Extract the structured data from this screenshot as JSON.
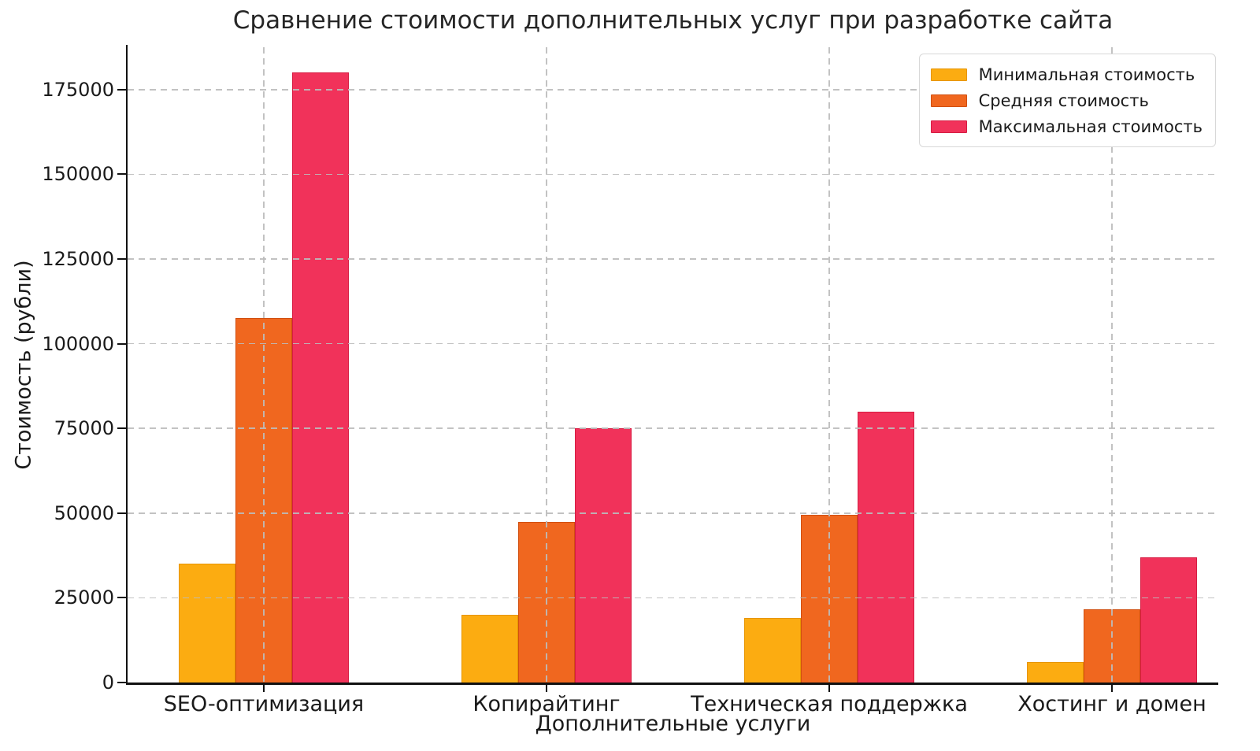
{
  "chart_data": {
    "type": "bar",
    "title": "Сравнение стоимости дополнительных услуг при разработке сайта",
    "xlabel": "Дополнительные услуги",
    "ylabel": "Стоимость (рубли)",
    "categories": [
      "SEO-оптимизация",
      "Копирайтинг",
      "Техническая поддержка",
      "Хостинг и домен"
    ],
    "series": [
      {
        "name": "Минимальная стоимость",
        "color": "#FCAC11",
        "edge_color": "#E79500",
        "values": [
          35000,
          20000,
          19000,
          6000
        ]
      },
      {
        "name": "Средняя стоимость",
        "color": "#F0671F",
        "edge_color": "#D14F10",
        "values": [
          107500,
          47500,
          49500,
          21500
        ]
      },
      {
        "name": "Максимальная стоимость",
        "color": "#F1325A",
        "edge_color": "#D61C42",
        "values": [
          180000,
          75000,
          80000,
          37000
        ]
      }
    ],
    "yticks": [
      0,
      25000,
      50000,
      75000,
      100000,
      125000,
      150000,
      175000
    ],
    "ylim": [
      0,
      187500
    ],
    "grid": {
      "show": true,
      "style": "dashed",
      "color": "#bcbcbc",
      "drawn_above_bars": true
    },
    "legend": {
      "position": "upper-right"
    }
  }
}
